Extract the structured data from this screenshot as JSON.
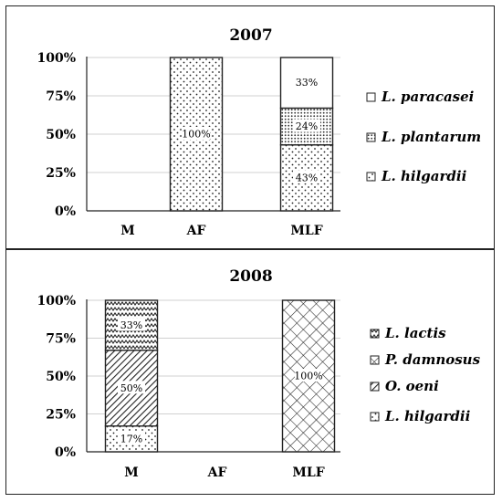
{
  "chart_data": [
    {
      "type": "bar",
      "stacked": true,
      "title": "2007",
      "categories": [
        "M",
        "AF",
        "MLF"
      ],
      "yticks": [
        "0%",
        "25%",
        "50%",
        "75%",
        "100%"
      ],
      "ylim": [
        0,
        100
      ],
      "grid": true,
      "legend_position": "right",
      "series": [
        {
          "name": "L. hilgardii",
          "pattern": "sparse-dots",
          "values": [
            0,
            100,
            43
          ],
          "labels": [
            "",
            "100%",
            "43%"
          ]
        },
        {
          "name": "L. plantarum",
          "pattern": "dense-dots",
          "values": [
            0,
            0,
            24
          ],
          "labels": [
            "",
            "",
            "24%"
          ]
        },
        {
          "name": "L. paracasei",
          "pattern": "plain",
          "values": [
            0,
            0,
            33
          ],
          "labels": [
            "",
            "",
            "33%"
          ]
        }
      ],
      "legend_order": [
        "L. paracasei",
        "L. plantarum",
        "L. hilgardii"
      ]
    },
    {
      "type": "bar",
      "stacked": true,
      "title": "2008",
      "categories": [
        "M",
        "AF",
        "MLF"
      ],
      "yticks": [
        "0%",
        "25%",
        "50%",
        "75%",
        "100%"
      ],
      "ylim": [
        0,
        100
      ],
      "grid": true,
      "legend_position": "right",
      "series": [
        {
          "name": "L. hilgardii",
          "pattern": "sparse-dots",
          "values": [
            17,
            0,
            0
          ],
          "labels": [
            "17%",
            "",
            ""
          ]
        },
        {
          "name": "O. oeni",
          "pattern": "diagonal-lines",
          "values": [
            50,
            0,
            0
          ],
          "labels": [
            "50%",
            "",
            ""
          ]
        },
        {
          "name": "P. damnosus",
          "pattern": "crosshatch",
          "values": [
            0,
            0,
            100
          ],
          "labels": [
            "",
            "",
            "100%"
          ]
        },
        {
          "name": "L. lactis",
          "pattern": "zigzag",
          "values": [
            33,
            0,
            0
          ],
          "labels": [
            "33%",
            "",
            ""
          ]
        }
      ],
      "legend_order": [
        "L. lactis",
        "P. damnosus",
        "O. oeni",
        "L. hilgardii"
      ]
    }
  ]
}
